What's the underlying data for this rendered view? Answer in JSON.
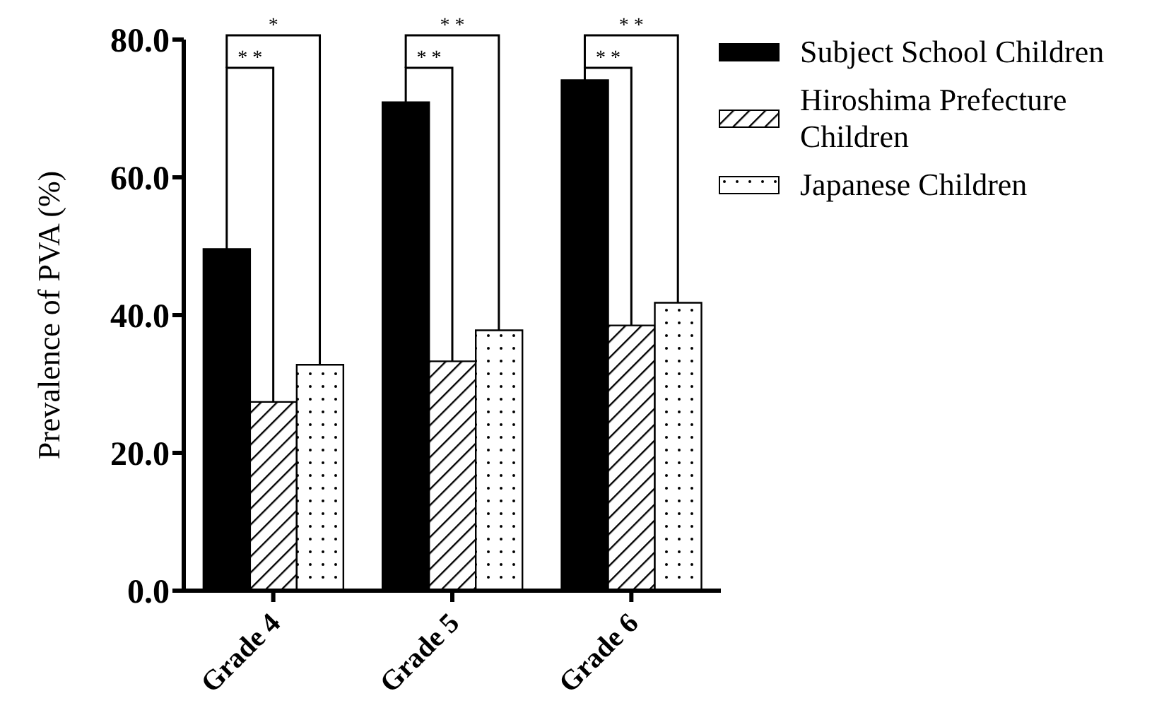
{
  "chart_data": {
    "type": "bar",
    "ylabel": "Prevalence of PVA (%)",
    "categories": [
      "Grade 4",
      "Grade 5",
      "Grade 6"
    ],
    "series": [
      {
        "name": "Subject School Children",
        "color": "#000000",
        "values": [
          49.6,
          70.9,
          74.1
        ]
      },
      {
        "name": "Hiroshima Prefecture Children",
        "color": "#000000",
        "values": [
          27.4,
          33.3,
          38.5
        ]
      },
      {
        "name": "Japanese Children",
        "color": "#000000",
        "values": [
          32.8,
          37.8,
          41.8
        ]
      }
    ],
    "ylim": [
      0,
      80
    ],
    "yticks": [
      {
        "value": 0,
        "label": "0.0"
      },
      {
        "value": 20,
        "label": "20.0"
      },
      {
        "value": 40,
        "label": "40.0"
      },
      {
        "value": 60,
        "label": "60.0"
      },
      {
        "value": 80,
        "label": "80.0"
      }
    ],
    "grid": false,
    "legend": "top right",
    "annotations": [
      "* *",
      "*",
      "* *",
      "* *",
      "* *",
      "* *"
    ]
  }
}
